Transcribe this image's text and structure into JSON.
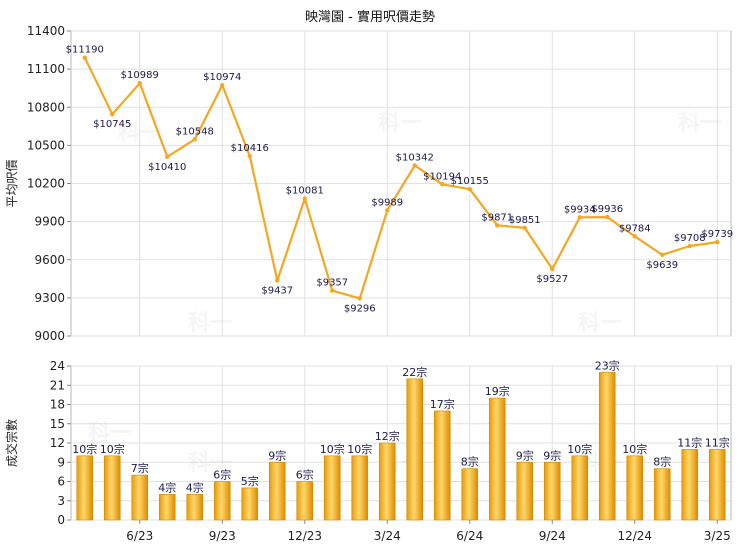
{
  "chart_data": [
    {
      "type": "line",
      "title": "映灣園 - 實用呎價走勢",
      "ylabel": "平均呎價",
      "ylim": [
        9000,
        11400
      ],
      "yticks": [
        9000,
        9300,
        9600,
        9900,
        10200,
        10500,
        10800,
        11100,
        11400
      ],
      "series": [
        {
          "values": [
            11190,
            10745,
            10989,
            10410,
            10548,
            10974,
            10416,
            9437,
            10081,
            9357,
            9296,
            9989,
            10342,
            10194,
            10155,
            9871,
            9851,
            9527,
            9934,
            9936,
            9784,
            9639,
            9708,
            9739
          ],
          "labels": [
            "$11190",
            "$10745",
            "$10989",
            "$10410",
            "$10548",
            "$10974",
            "$10416",
            "$9437",
            "$10081",
            "$9357",
            "$9296",
            "$9989",
            "$10342",
            "$10194",
            "$10155",
            "$9871",
            "$9851",
            "$9527",
            "$9934",
            "$9936",
            "$9784",
            "$9639",
            "$9708",
            "$9739"
          ],
          "color": "#f5a623"
        }
      ],
      "grid": true
    },
    {
      "type": "bar",
      "ylabel": "成交宗數",
      "ylim": [
        0,
        24
      ],
      "yticks": [
        0,
        3,
        6,
        9,
        12,
        15,
        18,
        21,
        24
      ],
      "categories": [
        "",
        "",
        "6/23",
        "",
        "",
        "9/23",
        "",
        "",
        "12/23",
        "",
        "",
        "3/24",
        "",
        "",
        "6/24",
        "",
        "",
        "9/24",
        "",
        "",
        "12/24",
        "",
        "",
        "3/25"
      ],
      "x_tick_labels": [
        "6/23",
        "9/23",
        "12/23",
        "3/24",
        "6/24",
        "9/24",
        "12/24",
        "3/25"
      ],
      "values": [
        10,
        10,
        7,
        4,
        4,
        6,
        5,
        9,
        6,
        10,
        10,
        12,
        22,
        17,
        8,
        19,
        9,
        9,
        10,
        23,
        10,
        8,
        11,
        11
      ],
      "labels": [
        "10宗",
        "10宗",
        "7宗",
        "4宗",
        "4宗",
        "6宗",
        "5宗",
        "9宗",
        "6宗",
        "10宗",
        "10宗",
        "12宗",
        "22宗",
        "17宗",
        "8宗",
        "19宗",
        "9宗",
        "9宗",
        "10宗",
        "23宗",
        "10宗",
        "8宗",
        "11宗",
        "11宗"
      ],
      "color": "#f0b020",
      "grid": true
    }
  ],
  "watermark": "科一"
}
